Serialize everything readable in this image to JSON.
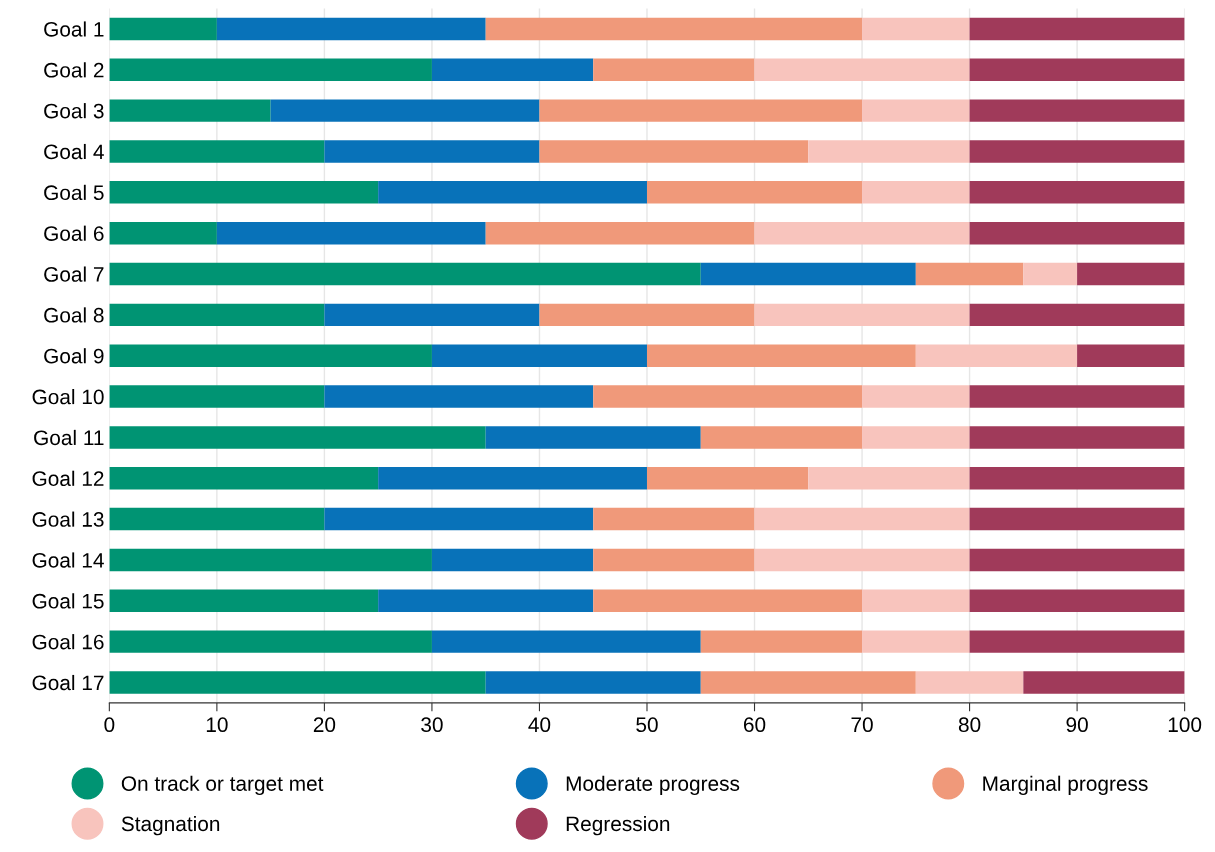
{
  "chart_data": {
    "type": "bar",
    "orientation": "horizontal",
    "stacked": true,
    "categories": [
      "Goal 1",
      "Goal 2",
      "Goal 3",
      "Goal 4",
      "Goal 5",
      "Goal 6",
      "Goal 7",
      "Goal 8",
      "Goal 9",
      "Goal 10",
      "Goal 11",
      "Goal 12",
      "Goal 13",
      "Goal 14",
      "Goal 15",
      "Goal 16",
      "Goal 17"
    ],
    "series": [
      {
        "name": "On track or target met",
        "color": "#009473",
        "values": [
          10,
          30,
          15,
          20,
          25,
          10,
          55,
          20,
          30,
          20,
          35,
          25,
          20,
          30,
          25,
          30,
          35
        ]
      },
      {
        "name": "Moderate progress",
        "color": "#0872b9",
        "values": [
          25,
          15,
          25,
          20,
          25,
          25,
          20,
          20,
          20,
          25,
          20,
          25,
          25,
          15,
          20,
          25,
          20
        ]
      },
      {
        "name": "Marginal progress",
        "color": "#f0997a",
        "values": [
          35,
          15,
          30,
          25,
          20,
          25,
          10,
          20,
          25,
          25,
          15,
          15,
          15,
          15,
          25,
          15,
          20
        ]
      },
      {
        "name": "Stagnation",
        "color": "#f8c4bd",
        "values": [
          10,
          20,
          10,
          15,
          10,
          20,
          5,
          20,
          15,
          10,
          10,
          15,
          20,
          20,
          10,
          10,
          10
        ]
      },
      {
        "name": "Regression",
        "color": "#a03a5a",
        "values": [
          20,
          20,
          20,
          20,
          20,
          20,
          10,
          20,
          10,
          20,
          20,
          20,
          20,
          20,
          20,
          20,
          15
        ]
      }
    ],
    "xlim": [
      0,
      100
    ],
    "xticks": [
      0,
      10,
      20,
      30,
      40,
      50,
      60,
      70,
      80,
      90,
      100
    ],
    "grid": "x",
    "legend": "bottom"
  }
}
